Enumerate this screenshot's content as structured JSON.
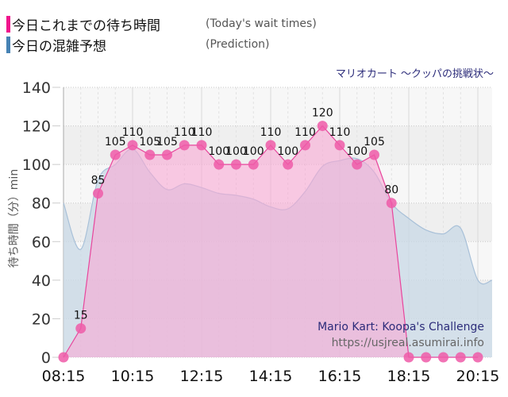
{
  "legend": [
    {
      "label_jp": "今日これまでの待ち時間",
      "label_en": "(Today's wait times)",
      "color": "#f0148c"
    },
    {
      "label_jp": "今日の混雑予想",
      "label_en": "(Prediction)",
      "color": "#4682b4"
    }
  ],
  "subtitle": "マリオカート ～クッパの挑戦状～",
  "watermark": {
    "title": "Mario Kart: Koopa's Challenge",
    "url": "https://usjreal.asumirai.info"
  },
  "colors": {
    "actual_line": "#e8459c",
    "actual_fill": "#f8a8d4",
    "actual_point": "#ee5aa8",
    "prediction_line": "#a8c0d8",
    "prediction_fill": "#c8d8e6",
    "band_light": "#f7f7f7",
    "band_dark": "#efefef"
  },
  "chart_data": {
    "type": "area",
    "title": "マリオカート ～クッパの挑戦状～",
    "xlabel": "",
    "ylabel": "待ち時間（分）min",
    "ylim": [
      0,
      140
    ],
    "yticks": [
      0,
      20,
      40,
      60,
      80,
      100,
      120,
      140
    ],
    "xtick_labels": [
      "08:15",
      "10:15",
      "12:15",
      "14:15",
      "16:15",
      "18:15",
      "20:15"
    ],
    "grid": true,
    "legend_position": "top-left",
    "series": [
      {
        "name": "今日これまでの待ち時間 (Today's wait times)",
        "type": "line-area-markers",
        "x": [
          "08:15",
          "08:45",
          "09:15",
          "09:45",
          "10:15",
          "10:45",
          "11:15",
          "11:45",
          "12:15",
          "12:45",
          "13:15",
          "13:45",
          "14:15",
          "14:45",
          "15:15",
          "15:45",
          "16:15",
          "16:45",
          "17:15",
          "17:45",
          "18:15",
          "18:45",
          "19:15",
          "19:45",
          "20:15"
        ],
        "values": [
          0,
          15,
          85,
          105,
          110,
          105,
          105,
          110,
          110,
          100,
          100,
          100,
          110,
          100,
          110,
          120,
          110,
          100,
          105,
          80,
          0,
          0,
          0,
          0,
          0
        ],
        "data_labels": [
          "",
          "15",
          "85",
          "105",
          "110",
          "105",
          "105",
          "110",
          "110",
          "100",
          "100",
          "100",
          "110",
          "100",
          "110",
          "120",
          "110",
          "100",
          "105",
          "80",
          "",
          "",
          "",
          "",
          ""
        ]
      },
      {
        "name": "今日の混雑予想 (Prediction)",
        "type": "smooth-area",
        "x": [
          "08:15",
          "08:45",
          "09:15",
          "09:45",
          "10:15",
          "10:45",
          "11:15",
          "11:45",
          "12:15",
          "12:45",
          "13:15",
          "13:45",
          "14:15",
          "14:45",
          "15:15",
          "15:45",
          "16:15",
          "16:45",
          "17:15",
          "17:45",
          "18:15",
          "18:45",
          "19:15",
          "19:45",
          "20:15",
          "20:45"
        ],
        "values": [
          80,
          56,
          92,
          100,
          108,
          96,
          87,
          90,
          88,
          85,
          84,
          82,
          78,
          77,
          86,
          99,
          102,
          103,
          96,
          80,
          72,
          66,
          64,
          67,
          40,
          40
        ]
      }
    ]
  }
}
